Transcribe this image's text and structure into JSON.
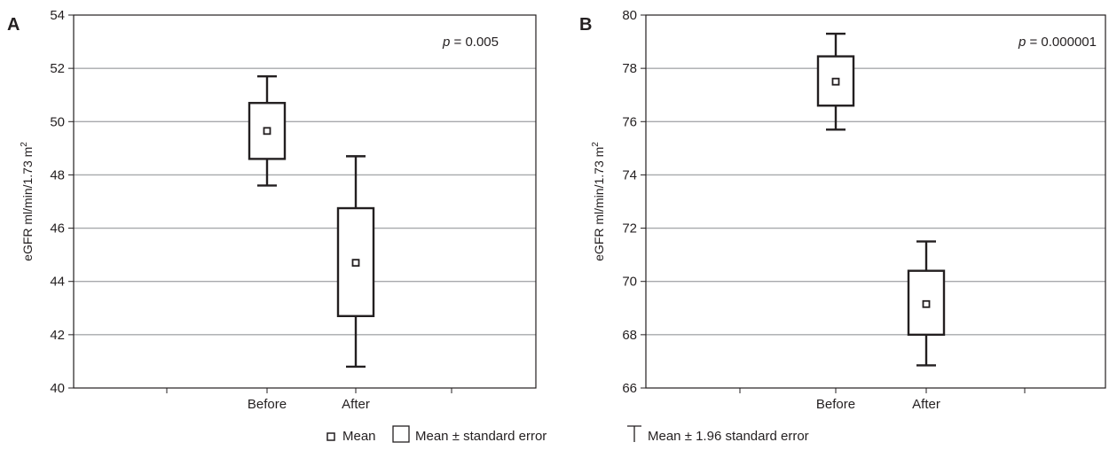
{
  "chart_data": [
    {
      "panel_label": "A",
      "type": "box",
      "ylabel": "eGFR ml/min/1.73 m",
      "ylabel_sup": "2",
      "ylim": [
        40,
        54
      ],
      "yticks": [
        40,
        42,
        44,
        46,
        48,
        50,
        52,
        54
      ],
      "ytick_labels": [
        "40",
        "42",
        "44",
        "46",
        "48",
        "50",
        "52",
        "54"
      ],
      "grid": true,
      "annotation": {
        "italic": "p",
        "text": " = 0.005"
      },
      "categories": [
        "Before",
        "After"
      ],
      "boxes": [
        {
          "category": "Before",
          "mean": 49.65,
          "se_low": 48.6,
          "se_high": 50.7,
          "ci_low": 47.6,
          "ci_high": 51.7
        },
        {
          "category": "After",
          "mean": 44.7,
          "se_low": 42.7,
          "se_high": 46.75,
          "ci_low": 40.8,
          "ci_high": 48.7
        }
      ]
    },
    {
      "panel_label": "B",
      "type": "box",
      "ylabel": "eGFR ml/min/1.73 m",
      "ylabel_sup": "2",
      "ylim": [
        66,
        80
      ],
      "yticks": [
        66,
        68,
        70,
        72,
        74,
        76,
        78,
        80
      ],
      "ytick_labels": [
        "66",
        "68",
        "70",
        "72",
        "74",
        "76",
        "78",
        "80"
      ],
      "grid": true,
      "annotation": {
        "italic": "p",
        "text": " = 0.000001"
      },
      "categories": [
        "Before",
        "After"
      ],
      "boxes": [
        {
          "category": "Before",
          "mean": 77.5,
          "se_low": 76.6,
          "se_high": 78.45,
          "ci_low": 75.7,
          "ci_high": 79.3
        },
        {
          "category": "After",
          "mean": 69.15,
          "se_low": 68.0,
          "se_high": 70.4,
          "ci_low": 66.85,
          "ci_high": 71.5
        }
      ]
    }
  ],
  "legend": {
    "position": "bottom",
    "items": [
      {
        "symbol": "mean-marker",
        "label": "Mean"
      },
      {
        "symbol": "box",
        "label": "Mean ± standard error"
      },
      {
        "symbol": "whisker",
        "label": "Mean ± 1.96 standard error"
      }
    ]
  }
}
